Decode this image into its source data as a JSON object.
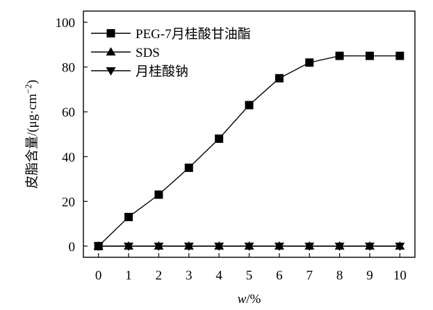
{
  "chart_data": {
    "type": "line",
    "title": "",
    "xlabel": {
      "italic": "w",
      "rest": "/%"
    },
    "ylabel": {
      "main": "皮脂含量/(μg·cm",
      "sup": "−2",
      "close": ")"
    },
    "xlim": [
      -0.5,
      10.5
    ],
    "ylim": [
      -5,
      105
    ],
    "xticks": [
      0,
      1,
      2,
      3,
      4,
      5,
      6,
      7,
      8,
      9,
      10
    ],
    "yticks": [
      0,
      20,
      40,
      60,
      80,
      100
    ],
    "grid": false,
    "legend_position": "top-left",
    "x": [
      0,
      1,
      2,
      3,
      4,
      5,
      6,
      7,
      8,
      9,
      10
    ],
    "series": [
      {
        "name": "PEG-7月桂酸甘油酯",
        "marker": "square",
        "values": [
          0,
          13,
          23,
          35,
          48,
          63,
          75,
          82,
          85,
          85,
          85
        ]
      },
      {
        "name": "SDS",
        "marker": "triangle-up",
        "values": [
          0,
          0,
          0,
          0,
          0,
          0,
          0,
          0,
          0,
          0,
          0
        ]
      },
      {
        "name": "月桂酸钠",
        "marker": "triangle-down",
        "values": [
          0,
          0,
          0,
          0,
          0,
          0,
          0,
          0,
          0,
          0,
          0
        ]
      }
    ],
    "colors": {
      "line": "#000000",
      "marker": "#000000"
    }
  }
}
